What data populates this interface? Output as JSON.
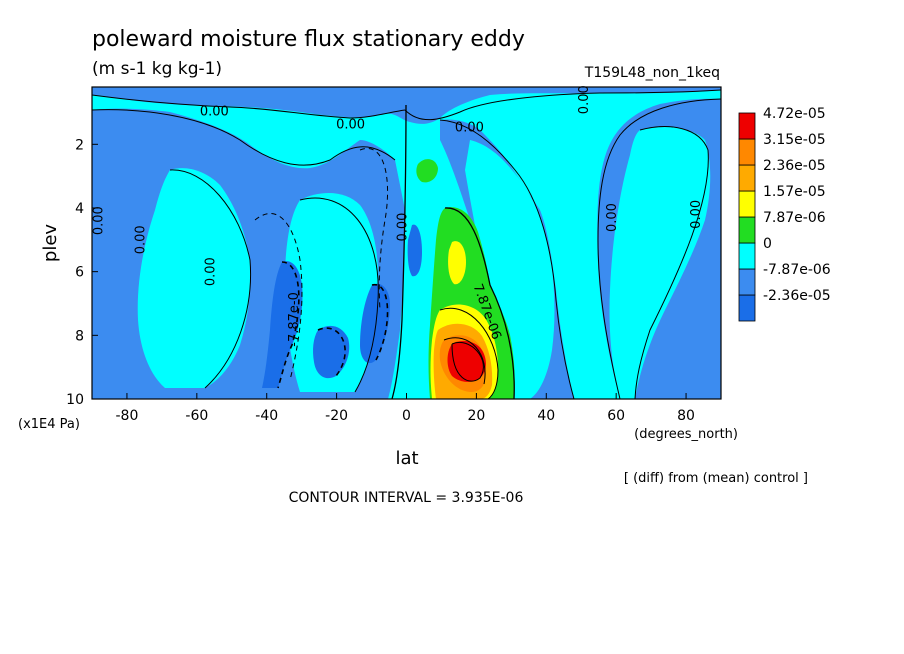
{
  "header": {
    "title": "poleward moisture flux stationary eddy",
    "units": "(m s-1 kg kg-1)",
    "run_id": "T159L48_non_1keq"
  },
  "footer": {
    "note": "[ (diff) from (mean) control ]",
    "contour_interval": "CONTOUR INTERVAL = 3.935E-06"
  },
  "chart_data": {
    "type": "heatmap",
    "xlabel": "lat",
    "xunits": "(degrees_north)",
    "ylabel": "plev",
    "yunits": "(x1E4 Pa)",
    "xlim": [
      -90,
      90
    ],
    "ylim": [
      10,
      0.2
    ],
    "xticks": [
      -80,
      -60,
      -40,
      -20,
      0,
      20,
      40,
      60,
      80
    ],
    "yticks": [
      2,
      4,
      6,
      8,
      10
    ],
    "colorbar": {
      "colors": [
        "#1a6ee8",
        "#3c8cf0",
        "#00ffff",
        "#22dd22",
        "#ffff00",
        "#ffaa00",
        "#ff8800",
        "#ee0000"
      ],
      "labels": [
        "4.72e-05",
        "3.15e-05",
        "2.36e-05",
        "1.57e-05",
        "7.87e-06",
        "0",
        "-7.87e-06",
        "-2.36e-05"
      ]
    },
    "contour_labels": [
      {
        "text": "0.00",
        "lat": -55,
        "plev": 1.1
      },
      {
        "text": "0.00",
        "lat": -16,
        "plev": 1.5
      },
      {
        "text": "0.00",
        "lat": 18,
        "plev": 1.6
      },
      {
        "text": "0.00",
        "lat": 52,
        "plev": 0.6
      },
      {
        "text": "0.00",
        "lat": -87,
        "plev": 4.4
      },
      {
        "text": "0.00",
        "lat": -75,
        "plev": 5.0
      },
      {
        "text": "0.00",
        "lat": -55,
        "plev": 6.0
      },
      {
        "text": "0.00",
        "lat": 60,
        "plev": 4.3
      },
      {
        "text": "0.00",
        "lat": 84,
        "plev": 4.2
      },
      {
        "text": "0.00",
        "lat": 0,
        "plev": 4.6
      },
      {
        "text": "-7.87e-0",
        "lat": -31,
        "plev": 7.5
      },
      {
        "text": "7.87e-06",
        "lat": 22,
        "plev": 7.3
      }
    ]
  }
}
